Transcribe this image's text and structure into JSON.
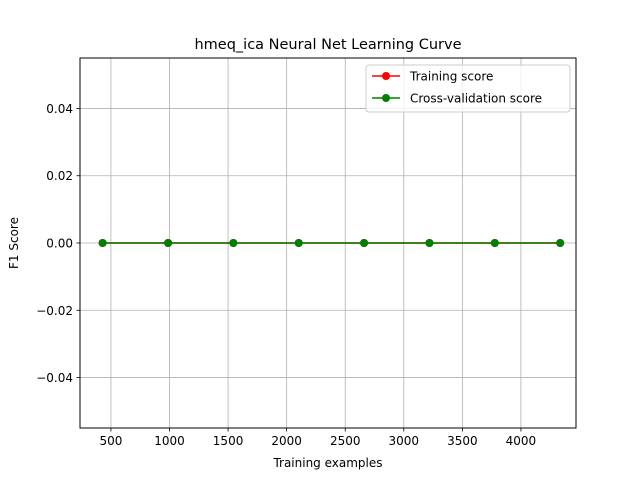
{
  "chart_data": {
    "type": "line",
    "title": "hmeq_ica Neural Net Learning Curve",
    "xlabel": "Training examples",
    "ylabel": "F1 Score",
    "xlim": [
      236,
      4470
    ],
    "ylim": [
      -0.055,
      0.055
    ],
    "x_ticks": [
      500,
      1000,
      1500,
      2000,
      2500,
      3000,
      3500,
      4000
    ],
    "y_ticks": [
      -0.04,
      -0.02,
      0.0,
      0.02,
      0.04
    ],
    "y_tick_labels": [
      "−0.04",
      "−0.02",
      "0.00",
      "0.02",
      "0.04"
    ],
    "grid": true,
    "legend": "top-right",
    "x": [
      429,
      988,
      1545,
      2103,
      2661,
      3219,
      3777,
      4335
    ],
    "series": [
      {
        "name": "Training score",
        "color": "#ff0000",
        "values": [
          0,
          0,
          0,
          0,
          0,
          0,
          0,
          0
        ]
      },
      {
        "name": "Cross-validation score",
        "color": "#008000",
        "values": [
          0,
          0,
          0,
          0,
          0,
          0,
          0,
          0
        ]
      }
    ]
  }
}
